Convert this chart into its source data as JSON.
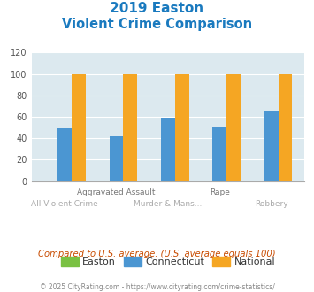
{
  "title_line1": "2019 Easton",
  "title_line2": "Violent Crime Comparison",
  "categories": [
    "All Violent Crime",
    "Aggravated Assault",
    "Murder & Mans...",
    "Rape",
    "Robbery"
  ],
  "easton_values": [
    0,
    0,
    0,
    0,
    0
  ],
  "connecticut_values": [
    49,
    42,
    59,
    51,
    66
  ],
  "national_values": [
    100,
    100,
    100,
    100,
    100
  ],
  "easton_color": "#7ac143",
  "connecticut_color": "#4b96d2",
  "national_color": "#f5a623",
  "ylim": [
    0,
    120
  ],
  "yticks": [
    0,
    20,
    40,
    60,
    80,
    100,
    120
  ],
  "bg_color": "#dce9ef",
  "title_color": "#1a7abf",
  "note_text": "Compared to U.S. average. (U.S. average equals 100)",
  "note_color": "#c84b00",
  "footer_text": "© 2025 CityRating.com - https://www.cityrating.com/crime-statistics/",
  "footer_color": "#888888",
  "legend_labels": [
    "Easton",
    "Connecticut",
    "National"
  ],
  "bar_width": 0.27,
  "tick_labels_row1": [
    "",
    "Aggravated Assault",
    "",
    "Rape",
    ""
  ],
  "tick_labels_row2": [
    "All Violent Crime",
    "",
    "Murder & Mans...",
    "",
    "Robbery"
  ]
}
